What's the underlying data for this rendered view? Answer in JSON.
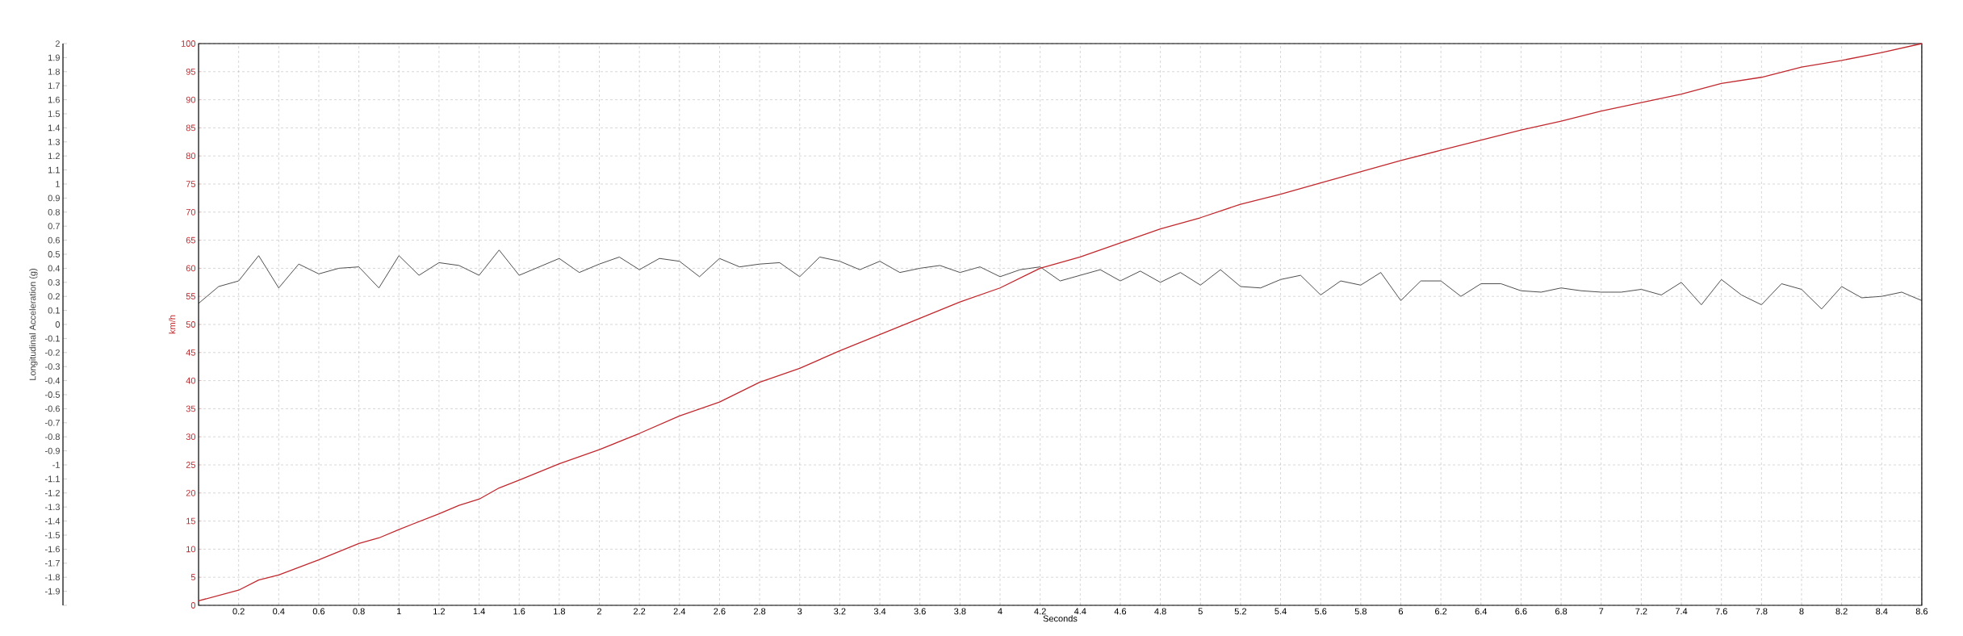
{
  "chart_data": {
    "type": "line",
    "xlabel": "Seconds",
    "ylabel": "Longitudinal Acceleration (g)",
    "y2label": "km/h",
    "xlim": [
      0,
      8.6
    ],
    "xticks": [
      0.2,
      0.4,
      0.6,
      0.8,
      1,
      1.2,
      1.4,
      1.6,
      1.8,
      2,
      2.2,
      2.4,
      2.6,
      2.8,
      3,
      3.2,
      3.4,
      3.6,
      3.8,
      4,
      4.2,
      4.4,
      4.6,
      4.8,
      5,
      5.2,
      5.4,
      5.6,
      5.8,
      6,
      6.2,
      6.4,
      6.6,
      6.8,
      7,
      7.2,
      7.4,
      7.6,
      7.8,
      8,
      8.2,
      8.4,
      8.6
    ],
    "ylim": [
      -2,
      2
    ],
    "yticks": [
      2,
      1.9,
      1.8,
      1.7,
      1.6,
      1.5,
      1.4,
      1.3,
      1.2,
      1.1,
      1,
      0.9,
      0.8,
      0.7,
      0.6,
      0.5,
      0.4,
      0.3,
      0.2,
      0.1,
      0,
      -0.1,
      -0.2,
      -0.3,
      -0.4,
      -0.5,
      -0.6,
      -0.7,
      -0.8,
      -0.9,
      -1,
      -1.1,
      -1.2,
      -1.3,
      -1.4,
      -1.5,
      -1.6,
      -1.7,
      -1.8,
      -1.9,
      {
        "value": -2,
        "label": null
      }
    ],
    "y2lim": [
      0,
      100
    ],
    "y2ticks": [
      0,
      5,
      10,
      15,
      20,
      25,
      30,
      35,
      40,
      45,
      50,
      55,
      60,
      65,
      70,
      75,
      80,
      85,
      90,
      95,
      100
    ],
    "grid": true,
    "marker": "none",
    "line_style": "solid",
    "series": [
      {
        "color": "#3a3a3a",
        "x": [
          0,
          0.1,
          0.2,
          0.3,
          0.4,
          0.5,
          0.6,
          0.7,
          0.8,
          0.9,
          1,
          1.1,
          1.2,
          1.3,
          1.4,
          1.5,
          1.6,
          1.7,
          1.8,
          1.9,
          2,
          2.1,
          2.2,
          2.3,
          2.4,
          2.5,
          2.6,
          2.7,
          2.8,
          2.9,
          3,
          3.1,
          3.2,
          3.3,
          3.4,
          3.5,
          3.6,
          3.7,
          3.8,
          3.9,
          4,
          4.1,
          4.2,
          4.3,
          4.4,
          4.5,
          4.6,
          4.7,
          4.8,
          4.9,
          5,
          5.1,
          5.2,
          5.3,
          5.4,
          5.5,
          5.6,
          5.7,
          5.8,
          5.9,
          6,
          6.1,
          6.2,
          6.3,
          6.4,
          6.5,
          6.6,
          6.7,
          6.8,
          6.9,
          7,
          7.1,
          7.2,
          7.3,
          7.4,
          7.5,
          7.6,
          7.7,
          7.8,
          7.9,
          8,
          8.1,
          8.2,
          8.3,
          8.4,
          8.5,
          8.6
        ],
        "values": [
          0.15,
          0.27,
          0.31,
          0.49,
          0.26,
          0.43,
          0.36,
          0.4,
          0.41,
          0.26,
          0.49,
          0.35,
          0.44,
          0.42,
          0.35,
          0.53,
          0.35,
          0.41,
          0.47,
          0.37,
          0.43,
          0.48,
          0.39,
          0.47,
          0.45,
          0.34,
          0.47,
          0.41,
          0.43,
          0.44,
          0.34,
          0.48,
          0.45,
          0.39,
          0.45,
          0.37,
          0.4,
          0.42,
          0.37,
          0.41,
          0.34,
          0.39,
          0.41,
          0.31,
          0.35,
          0.39,
          0.31,
          0.38,
          0.3,
          0.37,
          0.28,
          0.39,
          0.27,
          0.26,
          0.32,
          0.35,
          0.21,
          0.31,
          0.28,
          0.37,
          0.17,
          0.31,
          0.31,
          0.2,
          0.29,
          0.29,
          0.24,
          0.23,
          0.26,
          0.24,
          0.23,
          0.23,
          0.25,
          0.21,
          0.3,
          0.14,
          0.32,
          0.21,
          0.14,
          0.29,
          0.25,
          0.11,
          0.27,
          0.19,
          0.2,
          0.23,
          0.17
        ]
      },
      {
        "color": "#c0282d",
        "axis": "y2",
        "x": [
          0,
          0.2,
          0.3,
          0.4,
          0.6,
          0.8,
          0.9,
          1,
          1.2,
          1.3,
          1.4,
          1.5,
          1.6,
          1.8,
          2,
          2.2,
          2.4,
          2.6,
          2.8,
          3,
          3.2,
          3.4,
          3.6,
          3.8,
          4,
          4.2,
          4.4,
          4.6,
          4.8,
          5,
          5.2,
          5.4,
          5.6,
          5.8,
          6,
          6.2,
          6.4,
          6.6,
          6.8,
          7,
          7.2,
          7.4,
          7.6,
          7.8,
          8,
          8.2,
          8.4,
          8.6
        ],
        "values": [
          0.8,
          2.7,
          4.5,
          5.4,
          8.1,
          11,
          12,
          13.5,
          16.3,
          17.8,
          18.9,
          20.9,
          22.3,
          25.2,
          27.7,
          30.6,
          33.7,
          36.2,
          39.7,
          42.2,
          45.3,
          48.2,
          51.1,
          54,
          56.5,
          60,
          62,
          64.5,
          67,
          69,
          71.4,
          73.2,
          75.2,
          77.2,
          79.2,
          81,
          82.8,
          84.6,
          86.2,
          88,
          89.5,
          91,
          92.9,
          94,
          95.8,
          97,
          98.4,
          100
        ]
      }
    ]
  }
}
